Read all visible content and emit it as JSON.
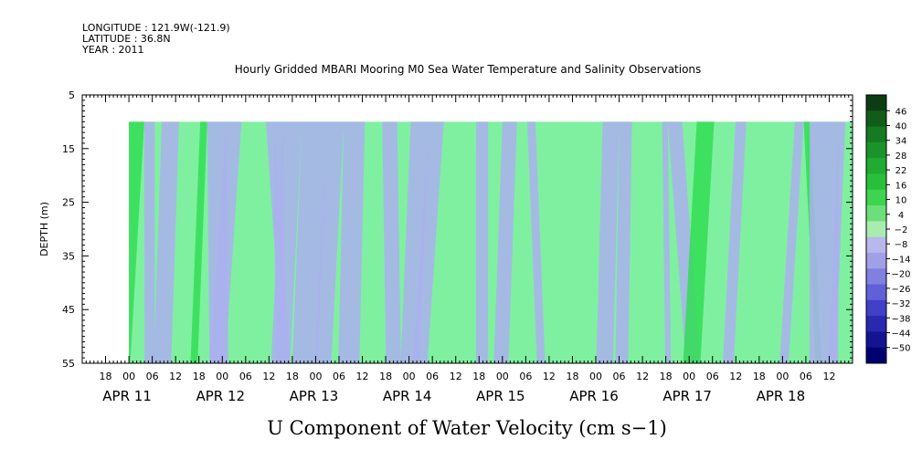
{
  "meta": {
    "longitude": "LONGITUDE : 121.9W(-121.9)",
    "latitude": "LATITUDE : 36.8N",
    "year": "YEAR : 2011"
  },
  "chart_data": {
    "type": "heatmap",
    "title": "Hourly Gridded MBARI Mooring M0 Sea Water Temperature and Salinity Observations",
    "xlabel": "U Component of Water Velocity (cm s−1)",
    "ylabel": "DEPTH (m)",
    "ylim": [
      55,
      5
    ],
    "y_ticks": [
      "5",
      "15",
      "25",
      "35",
      "45",
      "55"
    ],
    "x_time_range": [
      "2011-04-10T12:00",
      "2011-04-18T18:00"
    ],
    "data_start": "2011-04-11T00:00",
    "data_depth_range": [
      10,
      55
    ],
    "hour_ticks": [
      "18",
      "00",
      "06",
      "12",
      "18",
      "00",
      "06",
      "12",
      "18",
      "00",
      "06",
      "12",
      "18",
      "00",
      "06",
      "12",
      "18",
      "00",
      "06",
      "12",
      "18",
      "00",
      "06",
      "12",
      "18",
      "00",
      "06",
      "12",
      "18",
      "00",
      "06",
      "12"
    ],
    "date_labels": [
      "APR 11",
      "APR 12",
      "APR 13",
      "APR 14",
      "APR 15",
      "APR 16",
      "APR 17",
      "APR 18"
    ],
    "colorbar_ticks": [
      "46",
      "40",
      "34",
      "28",
      "22",
      "16",
      "10",
      "4",
      "−2",
      "−8",
      "−14",
      "−20",
      "−26",
      "−32",
      "−38",
      "−44",
      "−50"
    ],
    "colorbar_colors": [
      "#0c3d12",
      "#125c1a",
      "#157a22",
      "#1a942a",
      "#20ab33",
      "#28c03b",
      "#3fd44f",
      "#6be07a",
      "#a8ecb0",
      "#b8b8ec",
      "#a0a0e6",
      "#8080e0",
      "#6060d8",
      "#4040c8",
      "#2828b0",
      "#141490",
      "#000070"
    ],
    "field_colors": {
      "positive": "#7ff0a0",
      "strong_positive": "#33dd55",
      "negative": "#aab0ee"
    }
  }
}
